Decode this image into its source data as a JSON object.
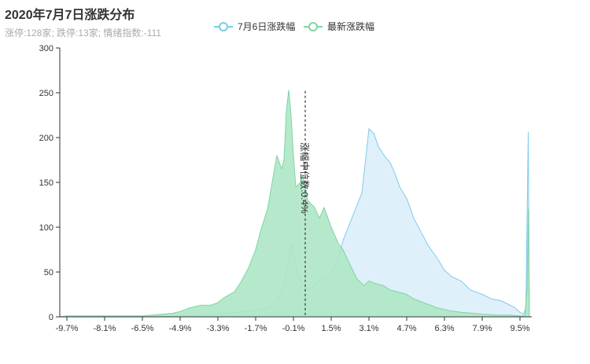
{
  "chart_data": {
    "type": "area",
    "title": "2020年7月7日涨跌分布",
    "subtitle": "涨停:128家; 跌停:13家; 情绪指数:-111",
    "ylim": [
      0,
      300
    ],
    "y_ticks": [
      0,
      50,
      100,
      150,
      200,
      250,
      300
    ],
    "xlim": [
      -10,
      10
    ],
    "x_tick_labels": [
      "-9.7%",
      "-8.1%",
      "-6.5%",
      "-4.9%",
      "-3.3%",
      "-1.7%",
      "-0.1%",
      "1.5%",
      "3.1%",
      "4.7%",
      "6.3%",
      "7.9%",
      "9.5%"
    ],
    "x_tick_values": [
      -9.7,
      -8.1,
      -6.5,
      -4.9,
      -3.3,
      -1.7,
      -0.1,
      1.5,
      3.1,
      4.7,
      6.3,
      7.9,
      9.5
    ],
    "median_line": {
      "x": 0.4,
      "label": "涨幅中位数:0.4%"
    },
    "grid": false,
    "legend_position": "top-center",
    "series": [
      {
        "name": "7月6日涨跌幅",
        "color": "#7ecbe8",
        "fill": "#e0f0fa",
        "points": [
          [
            -10,
            0
          ],
          [
            -9.7,
            1
          ],
          [
            -8.1,
            1
          ],
          [
            -6.5,
            1
          ],
          [
            -4.9,
            1
          ],
          [
            -4.0,
            2
          ],
          [
            -3.3,
            3
          ],
          [
            -2.5,
            5
          ],
          [
            -1.7,
            7
          ],
          [
            -1.2,
            10
          ],
          [
            -0.8,
            18
          ],
          [
            -0.5,
            35
          ],
          [
            -0.3,
            65
          ],
          [
            -0.2,
            80
          ],
          [
            -0.1,
            70
          ],
          [
            0.1,
            45
          ],
          [
            0.3,
            38
          ],
          [
            0.5,
            30
          ],
          [
            0.8,
            35
          ],
          [
            1.0,
            40
          ],
          [
            1.2,
            42
          ],
          [
            1.5,
            48
          ],
          [
            1.8,
            65
          ],
          [
            2.0,
            85
          ],
          [
            2.3,
            105
          ],
          [
            2.6,
            125
          ],
          [
            2.8,
            138
          ],
          [
            3.0,
            185
          ],
          [
            3.1,
            210
          ],
          [
            3.3,
            205
          ],
          [
            3.5,
            190
          ],
          [
            3.8,
            178
          ],
          [
            4.0,
            172
          ],
          [
            4.2,
            160
          ],
          [
            4.4,
            145
          ],
          [
            4.7,
            132
          ],
          [
            5.0,
            110
          ],
          [
            5.3,
            95
          ],
          [
            5.6,
            80
          ],
          [
            6.0,
            65
          ],
          [
            6.3,
            52
          ],
          [
            6.6,
            45
          ],
          [
            7.0,
            40
          ],
          [
            7.4,
            30
          ],
          [
            7.9,
            25
          ],
          [
            8.3,
            20
          ],
          [
            8.7,
            18
          ],
          [
            9.0,
            14
          ],
          [
            9.3,
            10
          ],
          [
            9.5,
            5
          ],
          [
            9.65,
            3
          ],
          [
            9.75,
            10
          ],
          [
            9.85,
            206
          ],
          [
            9.9,
            0
          ]
        ]
      },
      {
        "name": "最新涨跌幅",
        "color": "#7fd4a3",
        "fill": "#ace6c4",
        "points": [
          [
            -10,
            0
          ],
          [
            -9.7,
            1
          ],
          [
            -8.1,
            1
          ],
          [
            -6.5,
            1
          ],
          [
            -5.2,
            4
          ],
          [
            -4.9,
            6
          ],
          [
            -4.5,
            10
          ],
          [
            -4.0,
            13
          ],
          [
            -3.6,
            13
          ],
          [
            -3.3,
            16
          ],
          [
            -3.0,
            22
          ],
          [
            -2.6,
            28
          ],
          [
            -2.3,
            40
          ],
          [
            -2.0,
            55
          ],
          [
            -1.7,
            75
          ],
          [
            -1.5,
            95
          ],
          [
            -1.2,
            120
          ],
          [
            -1.0,
            150
          ],
          [
            -0.8,
            180
          ],
          [
            -0.6,
            165
          ],
          [
            -0.5,
            175
          ],
          [
            -0.4,
            230
          ],
          [
            -0.3,
            253
          ],
          [
            -0.2,
            225
          ],
          [
            -0.1,
            180
          ],
          [
            0.0,
            145
          ],
          [
            0.2,
            150
          ],
          [
            0.3,
            158
          ],
          [
            0.5,
            130
          ],
          [
            0.8,
            122
          ],
          [
            1.0,
            110
          ],
          [
            1.2,
            122
          ],
          [
            1.5,
            100
          ],
          [
            1.8,
            82
          ],
          [
            2.0,
            75
          ],
          [
            2.3,
            58
          ],
          [
            2.6,
            42
          ],
          [
            2.9,
            35
          ],
          [
            3.1,
            40
          ],
          [
            3.4,
            37
          ],
          [
            3.7,
            35
          ],
          [
            4.0,
            30
          ],
          [
            4.3,
            28
          ],
          [
            4.7,
            25
          ],
          [
            5.0,
            20
          ],
          [
            5.5,
            15
          ],
          [
            6.0,
            10
          ],
          [
            6.5,
            7
          ],
          [
            7.0,
            5
          ],
          [
            7.5,
            4
          ],
          [
            7.9,
            3
          ],
          [
            8.5,
            2
          ],
          [
            9.0,
            2
          ],
          [
            9.5,
            1
          ],
          [
            9.7,
            1
          ],
          [
            9.8,
            30
          ],
          [
            9.85,
            120
          ],
          [
            9.9,
            0
          ]
        ]
      }
    ]
  }
}
